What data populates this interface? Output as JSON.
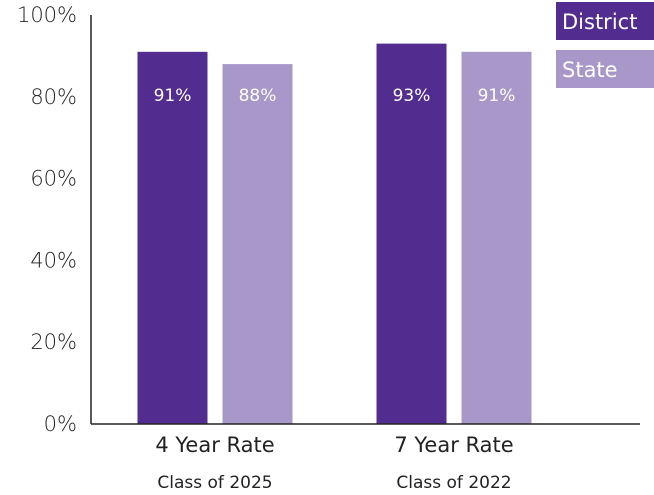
{
  "chart_data": {
    "type": "bar",
    "categories": [
      "4 Year Rate",
      "7 Year Rate"
    ],
    "category_sublabels": [
      "Class of 2025",
      "Class of 2022"
    ],
    "series": [
      {
        "name": "District",
        "values": [
          91,
          93
        ],
        "labels": [
          "91%",
          "93%"
        ],
        "color": "#522d8f"
      },
      {
        "name": "State",
        "values": [
          88,
          91
        ],
        "labels": [
          "88%",
          "91%"
        ],
        "color": "#a898c9"
      }
    ],
    "ylim": [
      0,
      100
    ],
    "yticks": [
      0,
      20,
      40,
      60,
      80,
      100
    ],
    "ytick_labels": [
      "0%",
      "20%",
      "40%",
      "60%",
      "80%",
      "100%"
    ],
    "grid": false,
    "legend_position": "top-right"
  }
}
